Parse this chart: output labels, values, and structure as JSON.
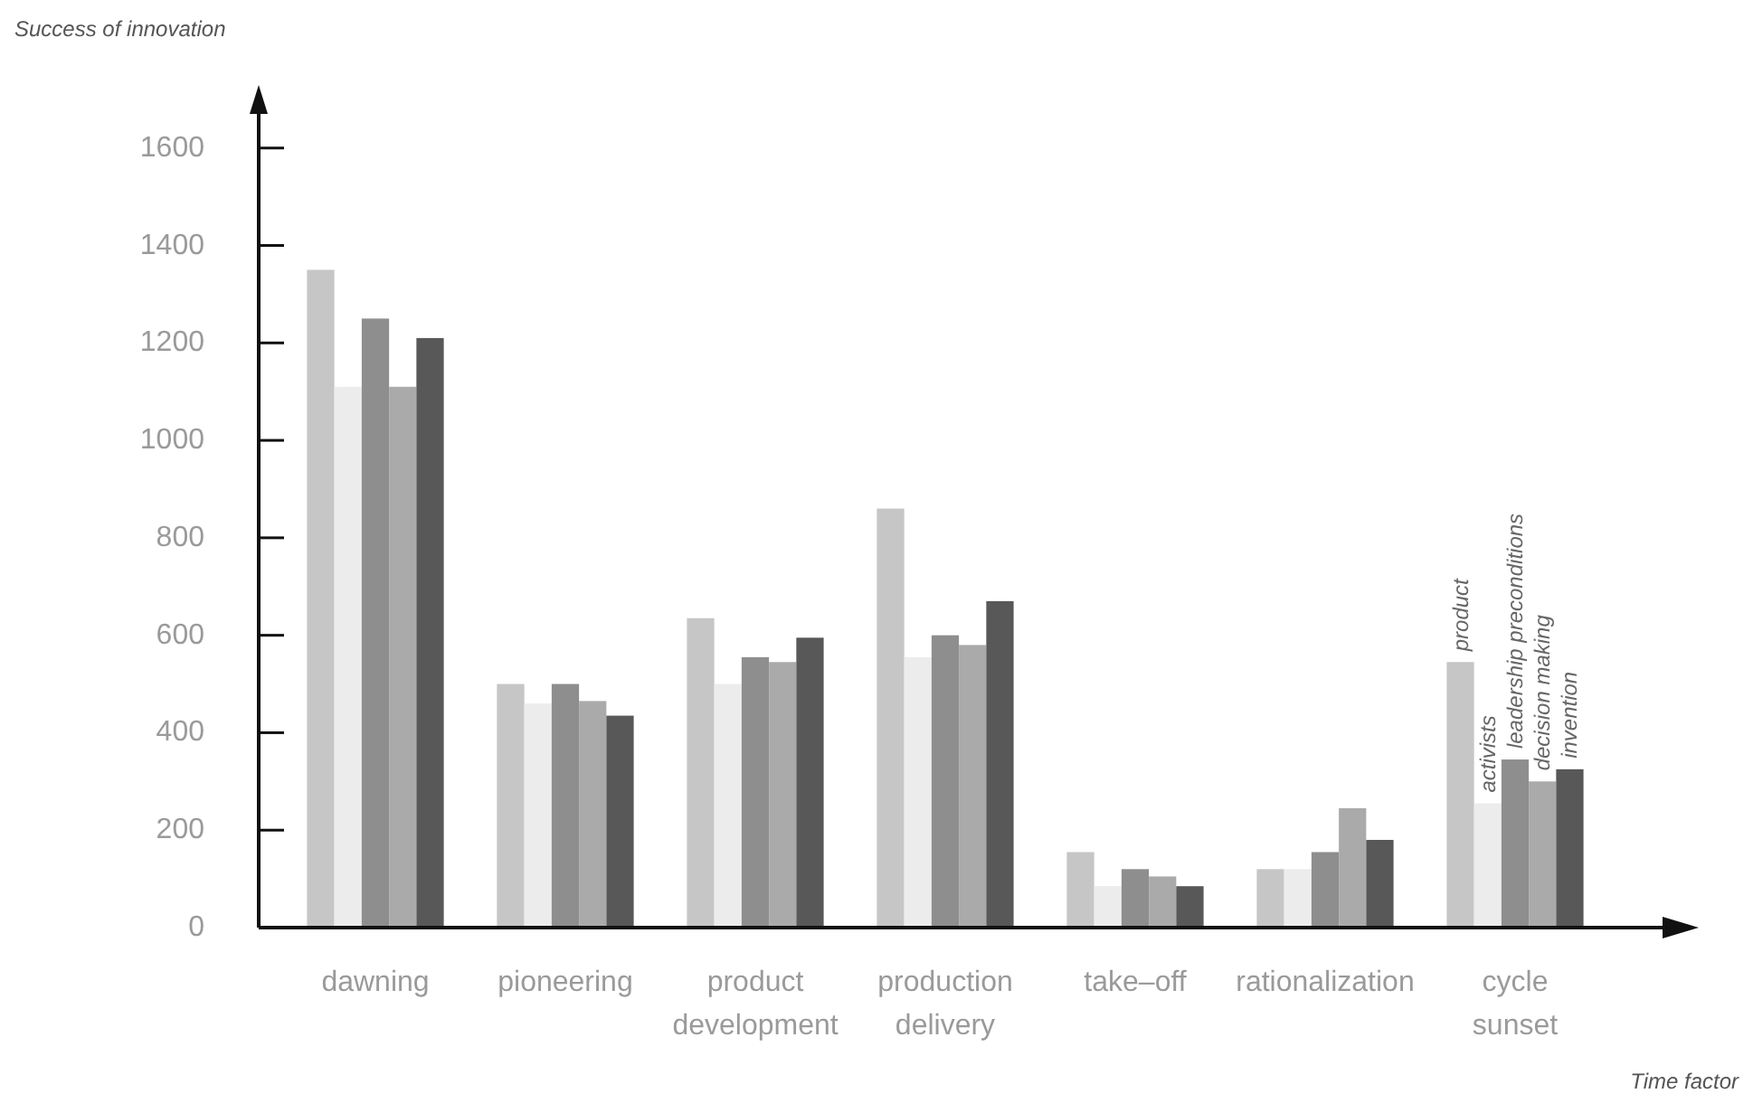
{
  "chart_data": {
    "type": "bar",
    "ylabel": "Success of innovation",
    "xlabel": "Time factor",
    "categories": [
      "dawning",
      "pioneering",
      "product development",
      "production delivery",
      "take–off",
      "rationalization",
      "cycle sunset"
    ],
    "series": [
      {
        "name": "product",
        "color": "#c6c6c6",
        "values": [
          1350,
          500,
          635,
          860,
          155,
          120,
          545
        ]
      },
      {
        "name": "activists",
        "color": "#ececec",
        "values": [
          1110,
          460,
          500,
          555,
          85,
          120,
          255
        ]
      },
      {
        "name": "leadership preconditions",
        "color": "#8e8e8e",
        "values": [
          1250,
          500,
          555,
          600,
          120,
          155,
          345
        ]
      },
      {
        "name": "decision making",
        "color": "#aaaaaa",
        "values": [
          1110,
          465,
          545,
          580,
          105,
          245,
          300
        ]
      },
      {
        "name": "invention",
        "color": "#585858",
        "values": [
          1210,
          435,
          595,
          670,
          85,
          180,
          325
        ]
      }
    ],
    "ylim": [
      0,
      1670
    ],
    "yticks": [
      0,
      200,
      400,
      600,
      800,
      1000,
      1200,
      1400,
      1600
    ],
    "grid": false
  }
}
